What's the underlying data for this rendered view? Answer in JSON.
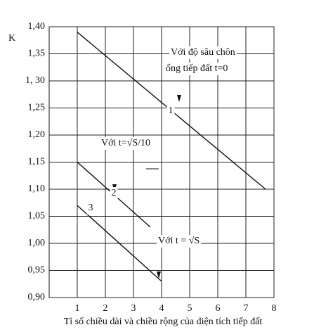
{
  "chart_data": {
    "type": "line",
    "y_label": "K",
    "x_label": "Tỉ số chiều dài và chiều rộng của diện tích tiếp đất",
    "annotations": [
      "Với độ sâu chôn",
      "ống tiếp đất t=0",
      "1",
      "Với t=√S/10",
      "2",
      "3",
      "Với t = √S"
    ],
    "color": "#111111",
    "grid": true,
    "xlim": [
      0,
      8
    ],
    "xticks": [
      1,
      2,
      3,
      4,
      5,
      6,
      7,
      8
    ],
    "ylim": [
      0.9,
      1.4
    ],
    "yticks": [
      {
        "value": 0.9,
        "label": "0,90"
      },
      {
        "value": 0.95,
        "label": "0,95"
      },
      {
        "value": 1.0,
        "label": "1,00"
      },
      {
        "value": 1.05,
        "label": "1,05"
      },
      {
        "value": 1.1,
        "label": "1,10"
      },
      {
        "value": 1.15,
        "label": "1,15"
      },
      {
        "value": 1.2,
        "label": "1,20"
      },
      {
        "value": 1.25,
        "label": "1,25"
      },
      {
        "value": 1.3,
        "label": "1, 30"
      },
      {
        "value": 1.35,
        "label": "1,35"
      },
      {
        "value": 1.4,
        "label": "1,40"
      }
    ],
    "series": [
      {
        "x": [
          1,
          7.7
        ],
        "values": [
          1.39,
          1.1
        ]
      },
      {
        "x": [
          1,
          3.6
        ],
        "values": [
          1.15,
          1.03
        ]
      },
      {
        "x": [
          1,
          4
        ],
        "values": [
          1.07,
          0.93
        ]
      }
    ]
  }
}
